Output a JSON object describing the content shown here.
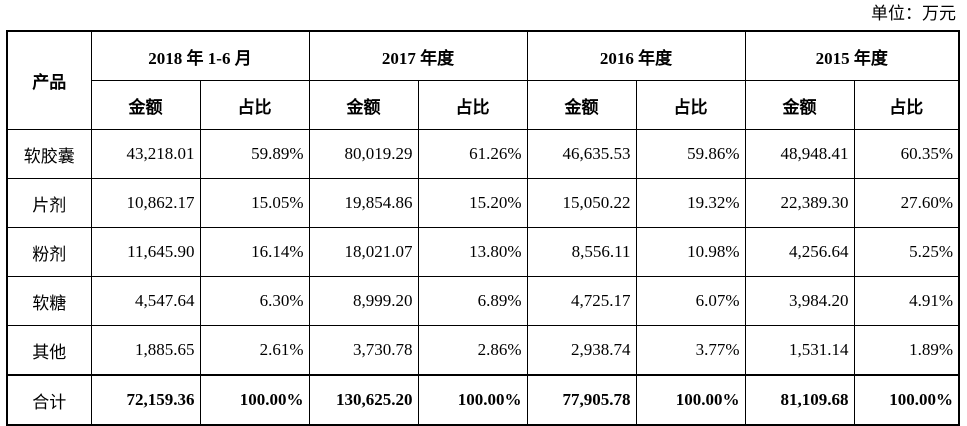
{
  "unit_note": "单位：万元",
  "header": {
    "product_label": "产品",
    "periods": [
      "2018 年 1-6 月",
      "2017 年度",
      "2016 年度",
      "2015 年度"
    ],
    "amount_label": "金额",
    "ratio_label": "占比"
  },
  "rows": [
    {
      "product": "软胶囊",
      "cells": [
        "43,218.01",
        "59.89%",
        "80,019.29",
        "61.26%",
        "46,635.53",
        "59.86%",
        "48,948.41",
        "60.35%"
      ]
    },
    {
      "product": "片剂",
      "cells": [
        "10,862.17",
        "15.05%",
        "19,854.86",
        "15.20%",
        "15,050.22",
        "19.32%",
        "22,389.30",
        "27.60%"
      ]
    },
    {
      "product": "粉剂",
      "cells": [
        "11,645.90",
        "16.14%",
        "18,021.07",
        "13.80%",
        "8,556.11",
        "10.98%",
        "4,256.64",
        "5.25%"
      ]
    },
    {
      "product": "软糖",
      "cells": [
        "4,547.64",
        "6.30%",
        "8,999.20",
        "6.89%",
        "4,725.17",
        "6.07%",
        "3,984.20",
        "4.91%"
      ]
    },
    {
      "product": "其他",
      "cells": [
        "1,885.65",
        "2.61%",
        "3,730.78",
        "2.86%",
        "2,938.74",
        "3.77%",
        "1,531.14",
        "1.89%"
      ]
    }
  ],
  "total": {
    "product": "合计",
    "cells": [
      "72,159.36",
      "100.00%",
      "130,625.20",
      "100.00%",
      "77,905.78",
      "100.00%",
      "81,109.68",
      "100.00%"
    ]
  }
}
